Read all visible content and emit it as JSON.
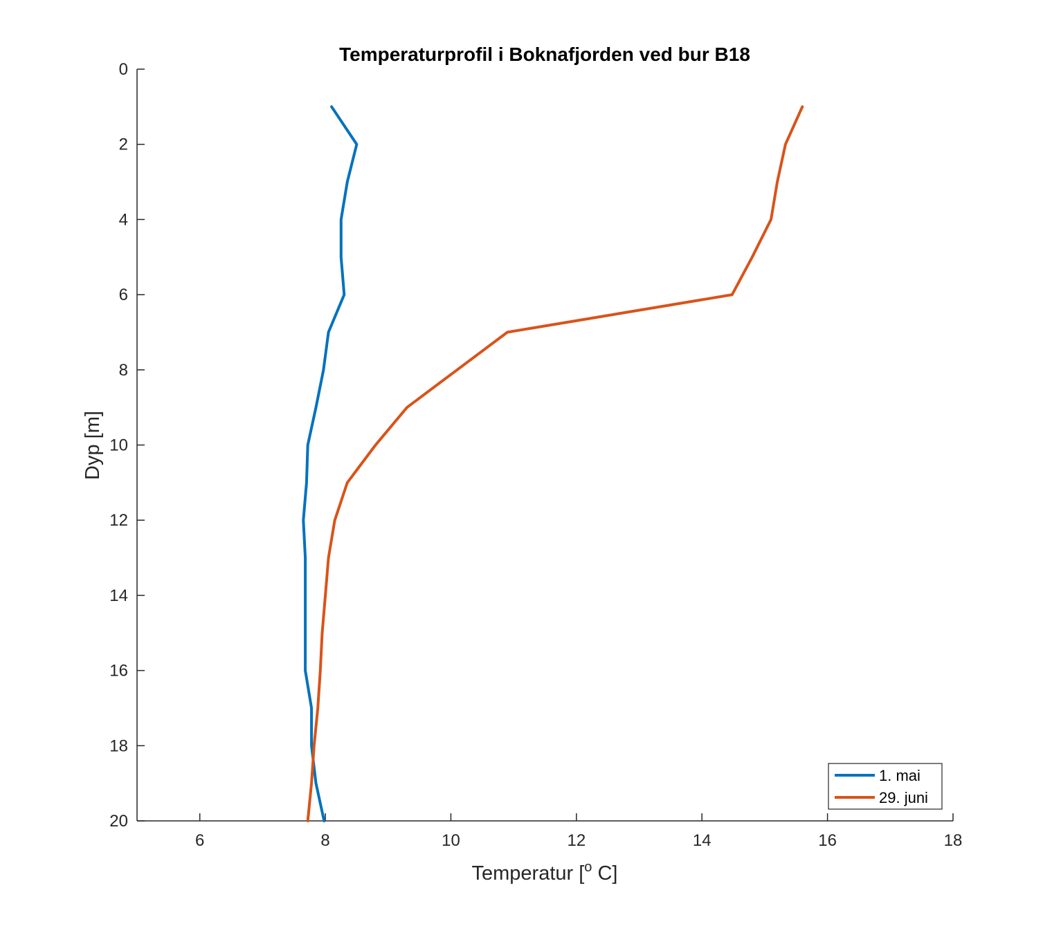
{
  "chart_data": {
    "type": "line",
    "title": "Temperaturprofil i Boknafjorden ved bur B18",
    "xlabel": {
      "text": "Temperatur [",
      "sup": "o",
      "suffix": " C]"
    },
    "ylabel": "Dyp [m]",
    "xlim": [
      5,
      18
    ],
    "ylim": [
      0,
      20
    ],
    "y_reversed": true,
    "xticks": [
      6,
      8,
      10,
      12,
      14,
      16,
      18
    ],
    "yticks": [
      0,
      2,
      4,
      6,
      8,
      10,
      12,
      14,
      16,
      18,
      20
    ],
    "grid": false,
    "legend_position": "bottom-right",
    "y": [
      1,
      2,
      3,
      4,
      5,
      6,
      7,
      8,
      9,
      10,
      11,
      12,
      13,
      14,
      15,
      16,
      17,
      18,
      19,
      20
    ],
    "series": [
      {
        "name": "1. mai",
        "color": "#0072BD",
        "x": [
          8.1,
          8.5,
          8.35,
          8.25,
          8.25,
          8.3,
          8.05,
          7.97,
          7.85,
          7.72,
          7.7,
          7.65,
          7.68,
          7.68,
          7.68,
          7.68,
          7.78,
          7.78,
          7.85,
          7.98
        ]
      },
      {
        "name": "29. juni",
        "color": "#D95319",
        "x": [
          15.6,
          15.33,
          15.2,
          15.1,
          14.8,
          14.48,
          10.9,
          10.1,
          9.3,
          8.8,
          8.35,
          8.15,
          8.05,
          8.0,
          7.95,
          7.92,
          7.88,
          7.82,
          7.78,
          7.72
        ]
      }
    ]
  }
}
